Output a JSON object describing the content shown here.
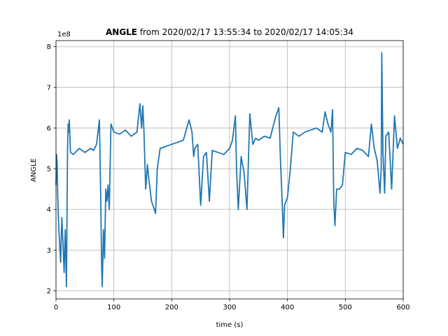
{
  "chart_data": {
    "type": "line",
    "title_bold": "ANGLE",
    "title_rest": " from 2020/02/17 13:55:34 to 2020/02/17 14:05:34",
    "xlabel": "time (s)",
    "ylabel": "ANGLE",
    "offset_label": "1e8",
    "xlim": [
      0,
      600
    ],
    "ylim": [
      1.8,
      8.15
    ],
    "xticks": [
      0,
      100,
      200,
      300,
      400,
      500,
      600
    ],
    "yticks": [
      2,
      3,
      4,
      5,
      6,
      7,
      8
    ],
    "grid": true,
    "line_color": "#1f77b4",
    "series": [
      {
        "x": [
          0,
          1,
          2,
          3,
          5,
          8,
          10,
          12,
          14,
          16,
          18,
          20,
          21,
          22,
          23,
          25,
          30,
          40,
          50,
          60,
          65,
          70,
          75,
          77,
          79,
          80,
          82,
          84,
          86,
          88,
          90,
          92,
          95,
          100,
          110,
          120,
          130,
          140,
          145,
          148,
          150,
          152,
          155,
          158,
          160,
          165,
          170,
          172,
          175,
          180,
          190,
          200,
          210,
          220,
          230,
          235,
          238,
          240,
          245,
          250,
          255,
          260,
          265,
          270,
          280,
          290,
          300,
          305,
          310,
          312,
          315,
          320,
          325,
          330,
          335,
          340,
          345,
          350,
          360,
          370,
          380,
          385,
          388,
          390,
          393,
          395,
          400,
          405,
          410,
          420,
          430,
          440,
          450,
          460,
          465,
          470,
          475,
          478,
          480,
          482,
          485,
          490,
          495,
          500,
          510,
          520,
          530,
          540,
          545,
          550,
          555,
          560,
          562,
          563,
          565,
          568,
          570,
          575,
          580,
          585,
          590,
          595,
          600
        ],
        "y": [
          4.6,
          5.35,
          5.1,
          4.3,
          3.5,
          2.7,
          3.8,
          3.2,
          2.45,
          3.5,
          2.1,
          5.5,
          6.1,
          5.9,
          6.2,
          5.4,
          5.35,
          5.5,
          5.4,
          5.5,
          5.45,
          5.6,
          6.2,
          4.5,
          2.5,
          2.1,
          3.5,
          2.8,
          4.5,
          4.2,
          4.6,
          4.0,
          6.1,
          5.9,
          5.85,
          5.95,
          5.8,
          5.9,
          6.6,
          6.0,
          6.55,
          5.9,
          4.5,
          5.1,
          4.8,
          4.2,
          4.0,
          3.9,
          5.0,
          5.5,
          5.55,
          5.6,
          5.65,
          5.7,
          6.2,
          5.9,
          5.3,
          5.5,
          5.6,
          4.1,
          5.3,
          5.4,
          4.2,
          5.45,
          5.4,
          5.35,
          5.5,
          5.7,
          6.3,
          5.0,
          4.0,
          5.3,
          4.9,
          4.0,
          6.35,
          5.6,
          5.75,
          5.7,
          5.8,
          5.75,
          6.3,
          6.5,
          5.2,
          4.5,
          3.3,
          4.1,
          4.3,
          5.0,
          5.9,
          5.8,
          5.9,
          5.95,
          6.0,
          5.9,
          6.4,
          6.1,
          5.9,
          6.45,
          4.2,
          3.6,
          4.5,
          4.5,
          4.6,
          5.4,
          5.35,
          5.5,
          5.45,
          5.3,
          6.1,
          5.5,
          5.2,
          4.4,
          5.0,
          7.85,
          5.4,
          4.4,
          5.8,
          5.9,
          4.5,
          6.3,
          5.5,
          5.75,
          5.6
        ]
      }
    ]
  }
}
